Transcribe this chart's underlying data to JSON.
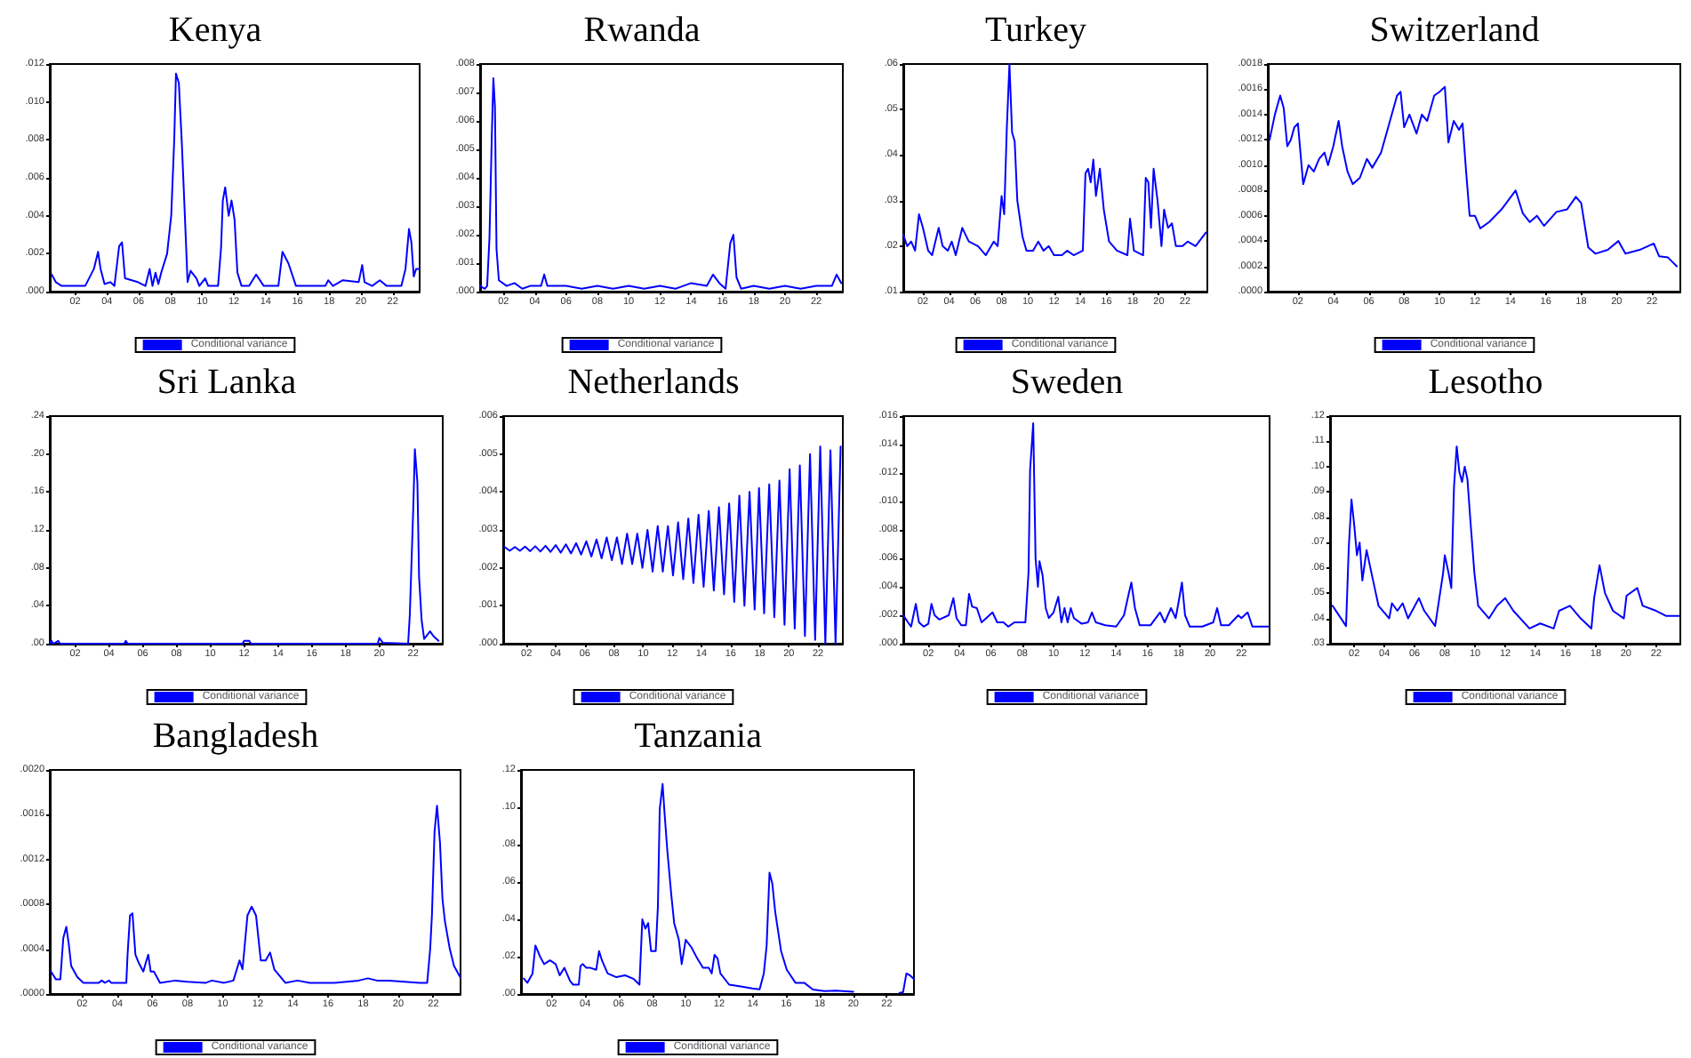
{
  "chart_data": [
    {
      "type": "line",
      "title": "Kenya",
      "legend": "bottom",
      "marker": "none",
      "xlim": [
        2000.4,
        2023.7
      ],
      "ylim": [
        0,
        0.012
      ],
      "xticks": [
        {
          "value": 2002,
          "label": "02"
        },
        {
          "value": 2004,
          "label": "04"
        },
        {
          "value": 2006,
          "label": "06"
        },
        {
          "value": 2008,
          "label": "08"
        },
        {
          "value": 2010,
          "label": "10"
        },
        {
          "value": 2012,
          "label": "12"
        },
        {
          "value": 2014,
          "label": "14"
        },
        {
          "value": 2016,
          "label": "16"
        },
        {
          "value": 2018,
          "label": "18"
        },
        {
          "value": 2020,
          "label": "20"
        },
        {
          "value": 2022,
          "label": "22"
        }
      ],
      "yticks": [
        {
          "value": 0,
          "label": ".000"
        },
        {
          "value": 0.002,
          "label": ".002"
        },
        {
          "value": 0.004,
          "label": ".004"
        },
        {
          "value": 0.006,
          "label": ".006"
        },
        {
          "value": 0.008,
          "label": ".008"
        },
        {
          "value": 0.01,
          "label": ".010"
        },
        {
          "value": 0.012,
          "label": ".012"
        }
      ],
      "x": [
        2000.52,
        2000.78,
        2001.15,
        2002.63,
        2003.18,
        2003.44,
        2003.6,
        2003.85,
        2004.21,
        2004.47,
        2004.77,
        2004.95,
        2005.14,
        2005.95,
        2006.43,
        2006.69,
        2006.87,
        2007.06,
        2007.24,
        2007.42,
        2007.79,
        2008.05,
        2008.24,
        2008.35,
        2008.53,
        2008.72,
        2008.9,
        2009.08,
        2009.27,
        2009.64,
        2009.82,
        2010.19,
        2010.38,
        2011.0,
        2011.19,
        2011.3,
        2011.45,
        2011.67,
        2011.85,
        2012.04,
        2012.22,
        2012.48,
        2012.96,
        2013.4,
        2013.88,
        2014.8,
        2015.06,
        2015.43,
        2015.91,
        2017.76,
        2017.94,
        2018.24,
        2018.86,
        2019.86,
        2020.08,
        2020.23,
        2020.71,
        2021.19,
        2021.63,
        2022.55,
        2022.81,
        2023.03,
        2023.18,
        2023.33,
        2023.48,
        2023.66
      ],
      "series": [
        {
          "name": "Conditional variance",
          "color": "#0000ff",
          "values": [
            0.0009,
            0.0005,
            0.0003,
            0.0003,
            0.0012,
            0.0021,
            0.0012,
            0.0004,
            0.0005,
            0.0003,
            0.0024,
            0.0026,
            0.0007,
            0.0005,
            0.0003,
            0.0012,
            0.0003,
            0.001,
            0.0004,
            0.001,
            0.002,
            0.004,
            0.008,
            0.0115,
            0.011,
            0.0078,
            0.0042,
            0.0005,
            0.0011,
            0.0007,
            0.0003,
            0.0007,
            0.0003,
            0.0003,
            0.0023,
            0.0048,
            0.0055,
            0.004,
            0.0048,
            0.0038,
            0.001,
            0.0003,
            0.0003,
            0.0009,
            0.0003,
            0.0003,
            0.0021,
            0.0015,
            0.0003,
            0.0003,
            0.0006,
            0.0003,
            0.0006,
            0.0005,
            0.0014,
            0.0005,
            0.0003,
            0.0006,
            0.0003,
            0.0003,
            0.0012,
            0.0033,
            0.0026,
            0.0008,
            0.0012,
            0.0012
          ]
        }
      ]
    },
    {
      "type": "line",
      "title": "Rwanda",
      "legend": "bottom",
      "marker": "none",
      "xlim": [
        2000.5,
        2023.7
      ],
      "ylim": [
        0,
        0.008
      ],
      "xticks": [
        {
          "value": 2002,
          "label": "02"
        },
        {
          "value": 2004,
          "label": "04"
        },
        {
          "value": 2006,
          "label": "06"
        },
        {
          "value": 2008,
          "label": "08"
        },
        {
          "value": 2010,
          "label": "10"
        },
        {
          "value": 2012,
          "label": "12"
        },
        {
          "value": 2014,
          "label": "14"
        },
        {
          "value": 2016,
          "label": "16"
        },
        {
          "value": 2018,
          "label": "18"
        },
        {
          "value": 2020,
          "label": "20"
        },
        {
          "value": 2022,
          "label": "22"
        }
      ],
      "yticks": [
        {
          "value": 0,
          "label": ".000"
        },
        {
          "value": 0.001,
          "label": ".001"
        },
        {
          "value": 0.002,
          "label": ".002"
        },
        {
          "value": 0.003,
          "label": ".003"
        },
        {
          "value": 0.004,
          "label": ".004"
        },
        {
          "value": 0.005,
          "label": ".005"
        },
        {
          "value": 0.006,
          "label": ".006"
        },
        {
          "value": 0.007,
          "label": ".007"
        },
        {
          "value": 0.008,
          "label": ".008"
        }
      ],
      "x": [
        2000.5,
        2000.8,
        2000.95,
        2001.1,
        2001.25,
        2001.35,
        2001.45,
        2001.55,
        2001.7,
        2002.2,
        2002.7,
        2003.2,
        2003.7,
        2004.4,
        2004.6,
        2004.8,
        2006,
        2007,
        2008,
        2009,
        2010,
        2011,
        2012,
        2013,
        2014,
        2015,
        2015.4,
        2015.8,
        2016.2,
        2016.5,
        2016.7,
        2016.9,
        2017.2,
        2018,
        2019,
        2020,
        2021,
        2022,
        2023,
        2023.3,
        2023.6
      ],
      "series": [
        {
          "name": "Conditional variance",
          "color": "#0000ff",
          "values": [
            0.0002,
            0.0001,
            0.0002,
            0.0019,
            0.0055,
            0.0075,
            0.0065,
            0.0015,
            0.0004,
            0.0002,
            0.0003,
            0.0001,
            0.0002,
            0.0002,
            0.0006,
            0.0002,
            0.0002,
            0.0001,
            0.0002,
            0.0001,
            0.0002,
            0.0001,
            0.0002,
            0.0001,
            0.0003,
            0.0002,
            0.0006,
            0.0003,
            0.0001,
            0.0017,
            0.002,
            0.0005,
            0.0001,
            0.0002,
            0.0001,
            0.0002,
            0.0001,
            0.0002,
            0.0002,
            0.0006,
            0.0003
          ]
        }
      ]
    },
    {
      "type": "line",
      "title": "Turkey",
      "legend": "bottom",
      "marker": "none",
      "xlim": [
        2000.5,
        2023.7
      ],
      "ylim": [
        0.01,
        0.06
      ],
      "xticks": [
        {
          "value": 2002,
          "label": "02"
        },
        {
          "value": 2004,
          "label": "04"
        },
        {
          "value": 2006,
          "label": "06"
        },
        {
          "value": 2008,
          "label": "08"
        },
        {
          "value": 2010,
          "label": "10"
        },
        {
          "value": 2012,
          "label": "12"
        },
        {
          "value": 2014,
          "label": "14"
        },
        {
          "value": 2016,
          "label": "16"
        },
        {
          "value": 2018,
          "label": "18"
        },
        {
          "value": 2020,
          "label": "20"
        },
        {
          "value": 2022,
          "label": "22"
        }
      ],
      "yticks": [
        {
          "value": 0.01,
          "label": ".01"
        },
        {
          "value": 0.02,
          "label": ".02"
        },
        {
          "value": 0.03,
          "label": ".03"
        },
        {
          "value": 0.04,
          "label": ".04"
        },
        {
          "value": 0.05,
          "label": ".05"
        },
        {
          "value": 0.06,
          "label": ".06"
        }
      ],
      "x": [
        2000.5,
        2000.8,
        2001.1,
        2001.4,
        2001.7,
        2002.0,
        2002.4,
        2002.7,
        2003.2,
        2003.5,
        2003.9,
        2004.2,
        2004.5,
        2005.0,
        2005.5,
        2006.2,
        2006.8,
        2007.4,
        2007.7,
        2008.0,
        2008.2,
        2008.4,
        2008.6,
        2008.8,
        2009.0,
        2009.2,
        2009.6,
        2009.9,
        2010.4,
        2010.8,
        2011.2,
        2011.6,
        2012.0,
        2012.6,
        2013.0,
        2013.5,
        2014.2,
        2014.4,
        2014.6,
        2014.8,
        2015.0,
        2015.2,
        2015.5,
        2015.8,
        2016.2,
        2016.8,
        2017.6,
        2017.8,
        2018.1,
        2018.8,
        2019.0,
        2019.2,
        2019.4,
        2019.6,
        2019.9,
        2020.2,
        2020.4,
        2020.7,
        2021.0,
        2021.3,
        2021.8,
        2022.2,
        2022.8,
        2023.6
      ],
      "series": [
        {
          "name": "Conditional variance",
          "color": "#0000ff",
          "values": [
            0.0225,
            0.02,
            0.021,
            0.019,
            0.027,
            0.024,
            0.019,
            0.018,
            0.024,
            0.02,
            0.019,
            0.021,
            0.018,
            0.024,
            0.021,
            0.02,
            0.018,
            0.021,
            0.02,
            0.031,
            0.027,
            0.046,
            0.06,
            0.045,
            0.043,
            0.03,
            0.022,
            0.019,
            0.019,
            0.021,
            0.019,
            0.02,
            0.018,
            0.018,
            0.019,
            0.018,
            0.019,
            0.036,
            0.037,
            0.034,
            0.039,
            0.031,
            0.037,
            0.028,
            0.021,
            0.019,
            0.018,
            0.026,
            0.019,
            0.018,
            0.035,
            0.034,
            0.024,
            0.037,
            0.03,
            0.02,
            0.028,
            0.024,
            0.025,
            0.02,
            0.02,
            0.021,
            0.02,
            0.023
          ]
        }
      ]
    },
    {
      "type": "line",
      "title": "Switzerland",
      "legend": "bottom",
      "marker": "none",
      "xlim": [
        2000.3,
        2023.6
      ],
      "ylim": [
        0,
        0.0018
      ],
      "xticks": [
        {
          "value": 2002,
          "label": "02"
        },
        {
          "value": 2004,
          "label": "04"
        },
        {
          "value": 2006,
          "label": "06"
        },
        {
          "value": 2008,
          "label": "08"
        },
        {
          "value": 2010,
          "label": "10"
        },
        {
          "value": 2012,
          "label": "12"
        },
        {
          "value": 2014,
          "label": "14"
        },
        {
          "value": 2016,
          "label": "16"
        },
        {
          "value": 2018,
          "label": "18"
        },
        {
          "value": 2020,
          "label": "20"
        },
        {
          "value": 2022,
          "label": "22"
        }
      ],
      "yticks": [
        {
          "value": 0,
          "label": ".0000"
        },
        {
          "value": 0.0002,
          "label": ".0002"
        },
        {
          "value": 0.0004,
          "label": ".0004"
        },
        {
          "value": 0.0006,
          "label": ".0006"
        },
        {
          "value": 0.0008,
          "label": ".0008"
        },
        {
          "value": 0.001,
          "label": ".0010"
        },
        {
          "value": 0.0012,
          "label": ".0012"
        },
        {
          "value": 0.0014,
          "label": ".0014"
        },
        {
          "value": 0.0016,
          "label": ".0016"
        },
        {
          "value": 0.0018,
          "label": ".0018"
        }
      ],
      "x": [
        2000.4,
        2000.7,
        2001.0,
        2001.2,
        2001.4,
        2001.6,
        2001.8,
        2002.0,
        2002.3,
        2002.6,
        2002.9,
        2003.2,
        2003.5,
        2003.7,
        2004.0,
        2004.3,
        2004.5,
        2004.8,
        2005.1,
        2005.5,
        2005.9,
        2006.2,
        2006.7,
        2007.2,
        2007.6,
        2007.8,
        2008.0,
        2008.3,
        2008.7,
        2009.0,
        2009.3,
        2009.7,
        2010.0,
        2010.3,
        2010.5,
        2010.8,
        2011.1,
        2011.3,
        2011.5,
        2011.7,
        2012.0,
        2012.3,
        2012.8,
        2013.5,
        2014.3,
        2014.7,
        2015.1,
        2015.5,
        2015.9,
        2016.6,
        2017.2,
        2017.7,
        2018.0,
        2018.4,
        2018.8,
        2019.5,
        2020.1,
        2020.5,
        2021.3,
        2022.1,
        2022.4,
        2022.9,
        2023.4
      ],
      "series": [
        {
          "name": "Conditional variance",
          "color": "#0000ff",
          "values": [
            0.0012,
            0.0014,
            0.00155,
            0.00145,
            0.00115,
            0.0012,
            0.0013,
            0.00133,
            0.00085,
            0.001,
            0.00095,
            0.00105,
            0.0011,
            0.001,
            0.00115,
            0.00135,
            0.00115,
            0.00095,
            0.00085,
            0.0009,
            0.00105,
            0.00098,
            0.0011,
            0.00135,
            0.00155,
            0.00158,
            0.0013,
            0.0014,
            0.00125,
            0.0014,
            0.00135,
            0.00155,
            0.00158,
            0.00162,
            0.00118,
            0.00135,
            0.00128,
            0.00133,
            0.00095,
            0.0006,
            0.0006,
            0.0005,
            0.00055,
            0.00065,
            0.0008,
            0.00062,
            0.00055,
            0.0006,
            0.00052,
            0.00063,
            0.00065,
            0.00075,
            0.0007,
            0.00035,
            0.0003,
            0.00033,
            0.0004,
            0.0003,
            0.00033,
            0.00038,
            0.00028,
            0.00027,
            0.0002
          ]
        }
      ]
    },
    {
      "type": "line",
      "title": "Sri Lanka",
      "legend": "bottom",
      "marker": "none",
      "xlim": [
        2000.5,
        2023.75
      ],
      "ylim": [
        0,
        0.24
      ],
      "xticks": [
        {
          "value": 2002,
          "label": "02"
        },
        {
          "value": 2004,
          "label": "04"
        },
        {
          "value": 2006,
          "label": "06"
        },
        {
          "value": 2008,
          "label": "08"
        },
        {
          "value": 2010,
          "label": "10"
        },
        {
          "value": 2012,
          "label": "12"
        },
        {
          "value": 2014,
          "label": "14"
        },
        {
          "value": 2016,
          "label": "16"
        },
        {
          "value": 2018,
          "label": "18"
        },
        {
          "value": 2020,
          "label": "20"
        },
        {
          "value": 2022,
          "label": "22"
        }
      ],
      "yticks": [
        {
          "value": 0,
          "label": ".00"
        },
        {
          "value": 0.04,
          "label": ".04"
        },
        {
          "value": 0.08,
          "label": ".08"
        },
        {
          "value": 0.12,
          "label": ".12"
        },
        {
          "value": 0.16,
          "label": ".16"
        },
        {
          "value": 0.2,
          "label": ".20"
        },
        {
          "value": 0.24,
          "label": ".24"
        }
      ],
      "x": [
        2000.5,
        2000.6,
        2000.7,
        2001.0,
        2001.1,
        2004.9,
        2005.0,
        2005.1,
        2011.9,
        2012.0,
        2012.3,
        2012.4,
        2019.9,
        2020.0,
        2020.2,
        2021.7,
        2021.8,
        2022.0,
        2022.1,
        2022.25,
        2022.35,
        2022.5,
        2022.65,
        2023.0,
        2023.2,
        2023.5
      ],
      "series": [
        {
          "name": "Conditional variance",
          "color": "#0000ff",
          "values": [
            0,
            0.003,
            0,
            0.003,
            0,
            0,
            0.003,
            0,
            0,
            0.003,
            0.003,
            0,
            0,
            0.006,
            0.001,
            0,
            0.03,
            0.14,
            0.205,
            0.17,
            0.07,
            0.025,
            0.005,
            0.013,
            0.008,
            0.003
          ]
        }
      ]
    },
    {
      "type": "line",
      "title": "Netherlands",
      "legend": "bottom",
      "marker": "none",
      "xlim": [
        2000.4,
        2023.7
      ],
      "ylim": [
        0,
        0.006
      ],
      "xticks": [
        {
          "value": 2002,
          "label": "02"
        },
        {
          "value": 2004,
          "label": "04"
        },
        {
          "value": 2006,
          "label": "06"
        },
        {
          "value": 2008,
          "label": "08"
        },
        {
          "value": 2010,
          "label": "10"
        },
        {
          "value": 2012,
          "label": "12"
        },
        {
          "value": 2014,
          "label": "14"
        },
        {
          "value": 2016,
          "label": "16"
        },
        {
          "value": 2018,
          "label": "18"
        },
        {
          "value": 2020,
          "label": "20"
        },
        {
          "value": 2022,
          "label": "22"
        }
      ],
      "yticks": [
        {
          "value": 0,
          "label": ".000"
        },
        {
          "value": 0.001,
          "label": ".001"
        },
        {
          "value": 0.002,
          "label": ".002"
        },
        {
          "value": 0.003,
          "label": ".003"
        },
        {
          "value": 0.004,
          "label": ".004"
        },
        {
          "value": 0.005,
          "label": ".005"
        },
        {
          "value": 0.006,
          "label": ".006"
        }
      ],
      "x": [
        2000.5,
        2000.85,
        2001.2,
        2001.55,
        2001.9,
        2002.25,
        2002.6,
        2002.95,
        2003.3,
        2003.65,
        2004.0,
        2004.35,
        2004.7,
        2005.05,
        2005.4,
        2005.75,
        2006.1,
        2006.45,
        2006.8,
        2007.15,
        2007.5,
        2007.85,
        2008.2,
        2008.55,
        2008.9,
        2009.25,
        2009.6,
        2009.95,
        2010.3,
        2010.65,
        2011.0,
        2011.35,
        2011.7,
        2012.05,
        2012.4,
        2012.75,
        2013.1,
        2013.45,
        2013.8,
        2014.15,
        2014.5,
        2014.85,
        2015.2,
        2015.55,
        2015.9,
        2016.25,
        2016.6,
        2016.95,
        2017.3,
        2017.65,
        2017.95,
        2018.3,
        2018.65,
        2019.0,
        2019.35,
        2019.7,
        2020.05,
        2020.4,
        2020.75,
        2021.1,
        2021.45,
        2021.8,
        2022.15,
        2022.5,
        2022.85,
        2023.2,
        2023.55
      ],
      "series": [
        {
          "name": "Conditional variance",
          "color": "#0000ff",
          "values": [
            0.00255,
            0.00245,
            0.00255,
            0.00245,
            0.00256,
            0.00244,
            0.00257,
            0.00243,
            0.00258,
            0.00242,
            0.0026,
            0.0024,
            0.00262,
            0.00238,
            0.00265,
            0.00235,
            0.0027,
            0.0023,
            0.00275,
            0.00225,
            0.0028,
            0.0022,
            0.0028,
            0.0021,
            0.0029,
            0.0021,
            0.0029,
            0.002,
            0.003,
            0.0019,
            0.0031,
            0.0019,
            0.0031,
            0.0018,
            0.0032,
            0.0017,
            0.0033,
            0.0016,
            0.0034,
            0.0015,
            0.0035,
            0.0014,
            0.0036,
            0.0013,
            0.0037,
            0.0011,
            0.0039,
            0.001,
            0.004,
            0.0009,
            0.0041,
            0.0008,
            0.0042,
            0.0007,
            0.0043,
            0.0005,
            0.0046,
            0.0004,
            0.0047,
            0.0002,
            0.005,
            0.0001,
            0.0052,
            0,
            0.0051,
            0,
            0.0052
          ]
        }
      ]
    },
    {
      "type": "line",
      "title": "Sweden",
      "legend": "bottom",
      "marker": "none",
      "xlim": [
        2000.4,
        2023.8
      ],
      "ylim": [
        0,
        0.016
      ],
      "xticks": [
        {
          "value": 2002,
          "label": "02"
        },
        {
          "value": 2004,
          "label": "04"
        },
        {
          "value": 2006,
          "label": "06"
        },
        {
          "value": 2008,
          "label": "08"
        },
        {
          "value": 2010,
          "label": "10"
        },
        {
          "value": 2012,
          "label": "12"
        },
        {
          "value": 2014,
          "label": "14"
        },
        {
          "value": 2016,
          "label": "16"
        },
        {
          "value": 2018,
          "label": "18"
        },
        {
          "value": 2020,
          "label": "20"
        },
        {
          "value": 2022,
          "label": "22"
        }
      ],
      "yticks": [
        {
          "value": 0,
          "label": ".000"
        },
        {
          "value": 0.002,
          "label": ".002"
        },
        {
          "value": 0.004,
          "label": ".004"
        },
        {
          "value": 0.006,
          "label": ".006"
        },
        {
          "value": 0.008,
          "label": ".008"
        },
        {
          "value": 0.01,
          "label": ".010"
        },
        {
          "value": 0.012,
          "label": ".012"
        },
        {
          "value": 0.014,
          "label": ".014"
        },
        {
          "value": 0.016,
          "label": ".016"
        }
      ],
      "x": [
        2000.4,
        2000.7,
        2000.9,
        2001.2,
        2001.4,
        2001.7,
        2002.0,
        2002.2,
        2002.4,
        2002.7,
        2003.3,
        2003.6,
        2003.8,
        2004.1,
        2004.4,
        2004.6,
        2004.8,
        2005.1,
        2005.4,
        2005.7,
        2006.1,
        2006.4,
        2006.8,
        2007.1,
        2007.5,
        2007.9,
        2008.2,
        2008.4,
        2008.5,
        2008.7,
        2008.85,
        2009.0,
        2009.1,
        2009.3,
        2009.5,
        2009.7,
        2010.0,
        2010.3,
        2010.5,
        2010.7,
        2010.9,
        2011.1,
        2011.3,
        2011.8,
        2012.2,
        2012.45,
        2012.7,
        2013.3,
        2014.0,
        2014.5,
        2014.8,
        2014.97,
        2015.2,
        2015.5,
        2016.2,
        2016.8,
        2017.1,
        2017.5,
        2017.8,
        2018.0,
        2018.2,
        2018.4,
        2018.7,
        2019.5,
        2020.2,
        2020.45,
        2020.7,
        2021.2,
        2021.8,
        2022.0,
        2022.4,
        2022.7,
        2023.7
      ],
      "series": [
        {
          "name": "Conditional variance",
          "color": "#0000ff",
          "values": [
            0.002,
            0.0015,
            0.0012,
            0.0028,
            0.0015,
            0.0012,
            0.0014,
            0.0028,
            0.002,
            0.0017,
            0.002,
            0.0032,
            0.0018,
            0.0013,
            0.0013,
            0.0035,
            0.0026,
            0.0025,
            0.0015,
            0.0018,
            0.0022,
            0.0015,
            0.0015,
            0.0012,
            0.0015,
            0.0015,
            0.0015,
            0.005,
            0.0122,
            0.0155,
            0.006,
            0.004,
            0.0058,
            0.0048,
            0.0025,
            0.0018,
            0.0022,
            0.0033,
            0.0015,
            0.0025,
            0.0015,
            0.0025,
            0.0018,
            0.0014,
            0.0015,
            0.0022,
            0.0015,
            0.0013,
            0.0012,
            0.002,
            0.0035,
            0.0043,
            0.0025,
            0.0013,
            0.0013,
            0.0022,
            0.0015,
            0.0025,
            0.0018,
            0.003,
            0.0043,
            0.002,
            0.0012,
            0.0012,
            0.0015,
            0.0025,
            0.0013,
            0.0013,
            0.002,
            0.0018,
            0.0022,
            0.0012,
            0.0012
          ]
        }
      ]
    },
    {
      "type": "line",
      "title": "Lesotho",
      "legend": "bottom",
      "marker": "none",
      "xlim": [
        2000.4,
        2023.6
      ],
      "ylim": [
        0.03,
        0.12
      ],
      "xticks": [
        {
          "value": 2002,
          "label": "02"
        },
        {
          "value": 2004,
          "label": "04"
        },
        {
          "value": 2006,
          "label": "06"
        },
        {
          "value": 2008,
          "label": "08"
        },
        {
          "value": 2010,
          "label": "10"
        },
        {
          "value": 2012,
          "label": "12"
        },
        {
          "value": 2014,
          "label": "14"
        },
        {
          "value": 2016,
          "label": "16"
        },
        {
          "value": 2018,
          "label": "18"
        },
        {
          "value": 2020,
          "label": "20"
        },
        {
          "value": 2022,
          "label": "22"
        }
      ],
      "yticks": [
        {
          "value": 0.03,
          "label": ".03"
        },
        {
          "value": 0.04,
          "label": ".04"
        },
        {
          "value": 0.05,
          "label": ".05"
        },
        {
          "value": 0.06,
          "label": ".06"
        },
        {
          "value": 0.07,
          "label": ".07"
        },
        {
          "value": 0.08,
          "label": ".08"
        },
        {
          "value": 0.09,
          "label": ".09"
        },
        {
          "value": 0.1,
          "label": ".10"
        },
        {
          "value": 0.11,
          "label": ".11"
        },
        {
          "value": 0.12,
          "label": ".12"
        }
      ],
      "x": [
        2000.57,
        2001.46,
        2001.64,
        2001.82,
        2002.0,
        2002.18,
        2002.36,
        2002.54,
        2002.82,
        2003.25,
        2003.61,
        2004.32,
        2004.5,
        2004.86,
        2005.21,
        2005.57,
        2006.29,
        2006.64,
        2007.36,
        2007.89,
        2008.0,
        2008.25,
        2008.43,
        2008.61,
        2008.79,
        2008.96,
        2009.14,
        2009.32,
        2009.5,
        2009.68,
        2009.96,
        2010.21,
        2010.93,
        2011.46,
        2012.0,
        2012.54,
        2013.61,
        2014.32,
        2015.21,
        2015.57,
        2016.29,
        2017.0,
        2017.71,
        2017.89,
        2018.25,
        2018.61,
        2019.14,
        2019.86,
        2020.04,
        2020.75,
        2021.11,
        2022.0,
        2022.64,
        2023.5
      ],
      "series": [
        {
          "name": "Conditional variance",
          "color": "#0000ff",
          "values": [
            0.045,
            0.037,
            0.068,
            0.087,
            0.077,
            0.065,
            0.07,
            0.055,
            0.067,
            0.055,
            0.045,
            0.04,
            0.046,
            0.043,
            0.046,
            0.04,
            0.048,
            0.043,
            0.037,
            0.058,
            0.065,
            0.058,
            0.052,
            0.092,
            0.108,
            0.098,
            0.094,
            0.1,
            0.095,
            0.08,
            0.058,
            0.045,
            0.04,
            0.045,
            0.048,
            0.043,
            0.036,
            0.038,
            0.036,
            0.043,
            0.045,
            0.04,
            0.036,
            0.048,
            0.061,
            0.05,
            0.043,
            0.04,
            0.049,
            0.052,
            0.045,
            0.043,
            0.041,
            0.041
          ]
        }
      ]
    },
    {
      "type": "line",
      "title": "Bangladesh",
      "legend": "bottom",
      "marker": "none",
      "xlim": [
        2000.15,
        2023.55
      ],
      "ylim": [
        0,
        0.002
      ],
      "xticks": [
        {
          "value": 2002,
          "label": "02"
        },
        {
          "value": 2004,
          "label": "04"
        },
        {
          "value": 2006,
          "label": "06"
        },
        {
          "value": 2008,
          "label": "08"
        },
        {
          "value": 2010,
          "label": "10"
        },
        {
          "value": 2012,
          "label": "12"
        },
        {
          "value": 2014,
          "label": "14"
        },
        {
          "value": 2016,
          "label": "16"
        },
        {
          "value": 2018,
          "label": "18"
        },
        {
          "value": 2020,
          "label": "20"
        },
        {
          "value": 2022,
          "label": "22"
        }
      ],
      "yticks": [
        {
          "value": 0,
          "label": ".0000"
        },
        {
          "value": 0.0004,
          "label": ".0004"
        },
        {
          "value": 0.0008,
          "label": ".0008"
        },
        {
          "value": 0.0012,
          "label": ".0012"
        },
        {
          "value": 0.0016,
          "label": ".0016"
        },
        {
          "value": 0.002,
          "label": ".0020"
        }
      ],
      "x": [
        2000.22,
        2000.5,
        2000.75,
        2000.92,
        2001.09,
        2001.23,
        2001.37,
        2001.72,
        2002.07,
        2002.94,
        2003.11,
        2003.29,
        2003.53,
        2003.64,
        2004.51,
        2004.58,
        2004.72,
        2004.86,
        2005.03,
        2005.21,
        2005.48,
        2005.62,
        2005.76,
        2005.9,
        2006.08,
        2006.43,
        2007.3,
        2007.99,
        2009.04,
        2009.39,
        2010.08,
        2010.61,
        2010.96,
        2011.13,
        2011.41,
        2011.65,
        2011.9,
        2012.17,
        2012.45,
        2012.7,
        2012.94,
        2013.57,
        2014.26,
        2014.96,
        2016.36,
        2017.75,
        2018.27,
        2018.79,
        2019.49,
        2021.23,
        2021.65,
        2021.82,
        2021.92,
        2022.07,
        2022.21,
        2022.38,
        2022.52,
        2022.66,
        2022.94,
        2023.18,
        2023.53
      ],
      "series": [
        {
          "name": "Conditional variance",
          "color": "#0000ff",
          "values": [
            0.0002,
            0.00013,
            0.00013,
            0.0005,
            0.0006,
            0.00045,
            0.00025,
            0.00015,
            0.0001,
            0.0001,
            0.00012,
            0.0001,
            0.00012,
            0.0001,
            0.0001,
            0.00035,
            0.0007,
            0.00072,
            0.00035,
            0.00028,
            0.0002,
            0.00028,
            0.00035,
            0.0002,
            0.0002,
            0.0001,
            0.00012,
            0.00011,
            0.0001,
            0.00012,
            0.0001,
            0.00012,
            0.0003,
            0.00022,
            0.0007,
            0.00078,
            0.0007,
            0.0003,
            0.0003,
            0.00037,
            0.00022,
            0.0001,
            0.00012,
            0.0001,
            0.0001,
            0.00012,
            0.00014,
            0.00012,
            0.00012,
            0.0001,
            0.0001,
            0.0004,
            0.0007,
            0.00145,
            0.00168,
            0.00135,
            0.00085,
            0.00065,
            0.0004,
            0.00025,
            0.00015
          ]
        }
      ]
    },
    {
      "type": "line",
      "title": "Tanzania",
      "legend": "bottom",
      "marker": "none",
      "xlim": [
        2000.17,
        2023.62
      ],
      "ylim": [
        0,
        0.12
      ],
      "xticks": [
        {
          "value": 2002,
          "label": "02"
        },
        {
          "value": 2004,
          "label": "04"
        },
        {
          "value": 2006,
          "label": "06"
        },
        {
          "value": 2008,
          "label": "08"
        },
        {
          "value": 2010,
          "label": "10"
        },
        {
          "value": 2012,
          "label": "12"
        },
        {
          "value": 2014,
          "label": "14"
        },
        {
          "value": 2016,
          "label": "16"
        },
        {
          "value": 2018,
          "label": "18"
        },
        {
          "value": 2020,
          "label": "20"
        },
        {
          "value": 2022,
          "label": "22"
        }
      ],
      "yticks": [
        {
          "value": 0,
          "label": ".00"
        },
        {
          "value": 0.02,
          "label": ".02"
        },
        {
          "value": 0.04,
          "label": ".04"
        },
        {
          "value": 0.06,
          "label": ".06"
        },
        {
          "value": 0.08,
          "label": ".08"
        },
        {
          "value": 0.1,
          "label": ".10"
        },
        {
          "value": 0.12,
          "label": ".12"
        }
      ],
      "x": [
        2000.34,
        2000.55,
        2000.86,
        2001.03,
        2001.31,
        2001.55,
        2001.9,
        2002.24,
        2002.48,
        2002.76,
        2003.1,
        2003.28,
        2003.62,
        2003.72,
        2003.86,
        2004.07,
        2004.31,
        2004.66,
        2004.83,
        2005.0,
        2005.34,
        2005.86,
        2006.38,
        2006.9,
        2007.24,
        2007.41,
        2007.59,
        2007.76,
        2007.93,
        2008.21,
        2008.34,
        2008.45,
        2008.62,
        2008.72,
        2008.9,
        2009.14,
        2009.31,
        2009.59,
        2009.76,
        2010.0,
        2010.34,
        2010.69,
        2011.03,
        2011.38,
        2011.55,
        2011.72,
        2011.9,
        2012.07,
        2012.59,
        2013.28,
        2013.97,
        2014.41,
        2014.66,
        2014.83,
        2015.0,
        2015.17,
        2015.34,
        2015.69,
        2016.03,
        2016.55,
        2017.07,
        2017.59,
        2018.28,
        2018.97,
        2020.0,
        2021.38,
        2022.76,
        2022.97,
        2023.17,
        2023.38,
        2023.62
      ],
      "series": [
        {
          "name": "Conditional variance",
          "color": "#0000ff",
          "values": [
            0.0083,
            0.006,
            0.011,
            0.026,
            0.02,
            0.016,
            0.018,
            0.016,
            0.01,
            0.014,
            0.007,
            0.005,
            0.005,
            0.015,
            0.016,
            0.014,
            0.014,
            0.013,
            0.023,
            0.018,
            0.011,
            0.009,
            0.01,
            0.008,
            0.005,
            0.04,
            0.035,
            0.038,
            0.023,
            0.023,
            0.047,
            0.099,
            0.1125,
            0.099,
            0.077,
            0.053,
            0.038,
            0.029,
            0.016,
            0.029,
            0.025,
            0.019,
            0.014,
            0.014,
            0.011,
            0.021,
            0.019,
            0.011,
            0.005,
            0.004,
            0.003,
            0.0025,
            0.011,
            0.026,
            0.065,
            0.059,
            0.044,
            0.023,
            0.013,
            0.006,
            0.006,
            0.0024,
            0.0015,
            0.0018,
            0.0012,
            null,
            0.0006,
            0.0009,
            0.011,
            0.01,
            0.008
          ]
        }
      ]
    }
  ]
}
